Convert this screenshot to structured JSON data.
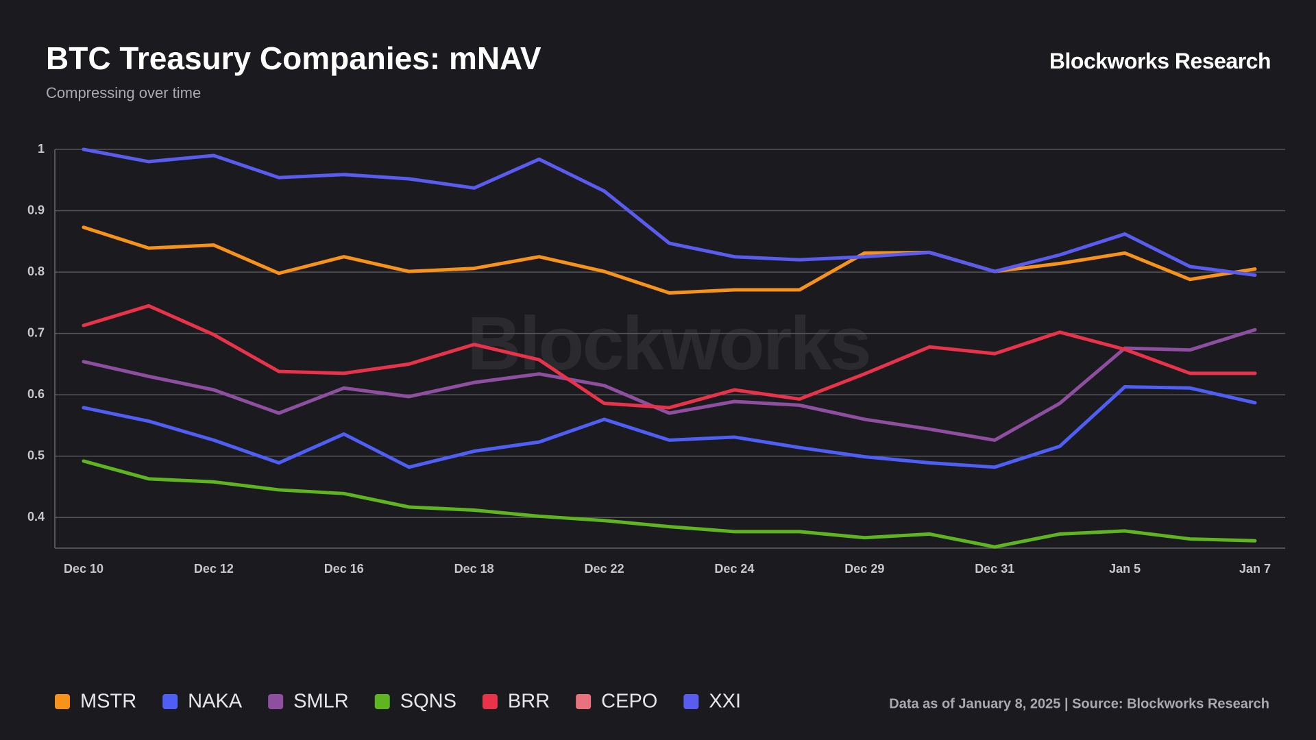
{
  "chart_data": {
    "type": "line",
    "title": "BTC Treasury Companies: mNAV",
    "subtitle": "Compressing over time",
    "brand": "Blockworks Research",
    "watermark": "Blockworks",
    "footer": "Data as of January 8, 2025 | Source: Blockworks Research",
    "categories": [
      "Dec 10",
      null,
      "Dec 12",
      null,
      "Dec 16",
      null,
      "Dec 18",
      null,
      "Dec 22",
      null,
      "Dec 24",
      null,
      "Dec 29",
      null,
      "Dec 31",
      null,
      "Jan 5",
      null,
      "Jan 7"
    ],
    "ylim": [
      0.35,
      1.0
    ],
    "yticks": [
      0.4,
      0.5,
      0.6,
      0.7,
      0.8,
      0.9,
      {
        "value": 1.0,
        "label": "1"
      }
    ],
    "grid": true,
    "legend": "bottom",
    "series": [
      {
        "name": "MSTR",
        "color": "#f7931a",
        "values": [
          0.873,
          0.839,
          0.844,
          0.798,
          0.825,
          0.801,
          0.806,
          0.825,
          0.801,
          0.766,
          0.771,
          0.771,
          0.831,
          0.832,
          0.801,
          0.814,
          0.831,
          0.788,
          0.805
        ]
      },
      {
        "name": "NAKA",
        "color": "#4f5ef5",
        "values": [
          0.579,
          0.557,
          0.526,
          0.489,
          0.536,
          0.482,
          0.508,
          0.523,
          0.56,
          0.526,
          0.531,
          0.514,
          0.499,
          0.489,
          0.482,
          0.516,
          0.613,
          0.611,
          0.587
        ]
      },
      {
        "name": "SMLR",
        "color": "#8e4fa0",
        "values": [
          0.654,
          0.63,
          0.608,
          0.57,
          0.611,
          0.597,
          0.62,
          0.634,
          0.615,
          0.57,
          0.589,
          0.583,
          0.56,
          0.544,
          0.526,
          0.586,
          0.676,
          0.673,
          0.706
        ]
      },
      {
        "name": "SQNS",
        "color": "#5fb520",
        "values": [
          0.492,
          0.463,
          0.458,
          0.445,
          0.439,
          0.417,
          0.412,
          0.402,
          0.395,
          0.385,
          0.377,
          0.377,
          0.367,
          0.373,
          0.352,
          0.373,
          0.378,
          0.365,
          0.362
        ]
      },
      {
        "name": "BRR",
        "color": "#e8334a",
        "values": [
          0.713,
          0.745,
          0.698,
          0.638,
          0.635,
          0.65,
          0.682,
          0.657,
          0.586,
          0.579,
          0.608,
          0.593,
          0.634,
          0.678,
          0.667,
          0.702,
          0.674,
          0.635,
          0.635
        ]
      },
      {
        "name": "CEPO",
        "color": "#e8737f",
        "values": [
          null,
          null,
          null,
          null,
          null,
          null,
          null,
          null,
          null,
          null,
          null,
          null,
          null,
          null,
          null,
          null,
          null,
          null,
          null
        ]
      },
      {
        "name": "XXI",
        "color": "#5a5cf0",
        "values": [
          1.0,
          0.98,
          0.99,
          0.954,
          0.959,
          0.952,
          0.937,
          0.984,
          0.932,
          0.847,
          0.825,
          0.82,
          0.825,
          0.832,
          0.801,
          0.828,
          0.862,
          0.809,
          0.795
        ]
      }
    ]
  }
}
